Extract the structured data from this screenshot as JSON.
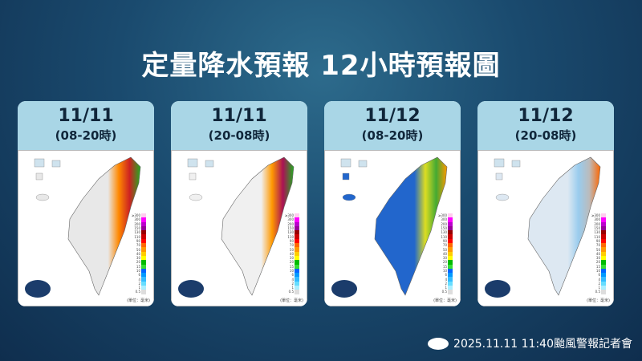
{
  "title": "定量降水預報  12小時預報圖",
  "panels": [
    {
      "date": "11/11",
      "period": "(08-20時)",
      "colors": [
        "#e8e8e8",
        "#cc2222",
        "#ff8800",
        "#22aa22"
      ]
    },
    {
      "date": "11/11",
      "period": "(20-08時)",
      "colors": [
        "#f0f0f0",
        "#aa1155",
        "#ff9900",
        "#22aa22"
      ]
    },
    {
      "date": "11/12",
      "period": "(08-20時)",
      "colors": [
        "#2266cc",
        "#44aa33",
        "#dddd22",
        "#ff9900"
      ]
    },
    {
      "date": "11/12",
      "period": "(20-08時)",
      "colors": [
        "#dde8f2",
        "#bbbbbb",
        "#99ccee",
        "#ff6600"
      ]
    }
  ],
  "legend": {
    "values": [
      "≥300",
      "300",
      "200",
      "150",
      "130",
      "110",
      "90",
      "70",
      "50",
      "40",
      "30",
      "20",
      "15",
      "10",
      "6",
      "4",
      "2",
      "1",
      "0.5"
    ],
    "colors": [
      "#ffccee",
      "#ff00ff",
      "#bb00cc",
      "#990099",
      "#990000",
      "#cc0000",
      "#ff0000",
      "#ff6600",
      "#ff9900",
      "#ffcc00",
      "#ffff00",
      "#00bb00",
      "#33dd33",
      "#0066ff",
      "#0099ff",
      "#33bbff",
      "#66ddff",
      "#aaeeff",
      "#dddddd"
    ],
    "unit": "(單位：毫米)"
  },
  "footer": "2025.11.11  11:40颱風警報記者會"
}
